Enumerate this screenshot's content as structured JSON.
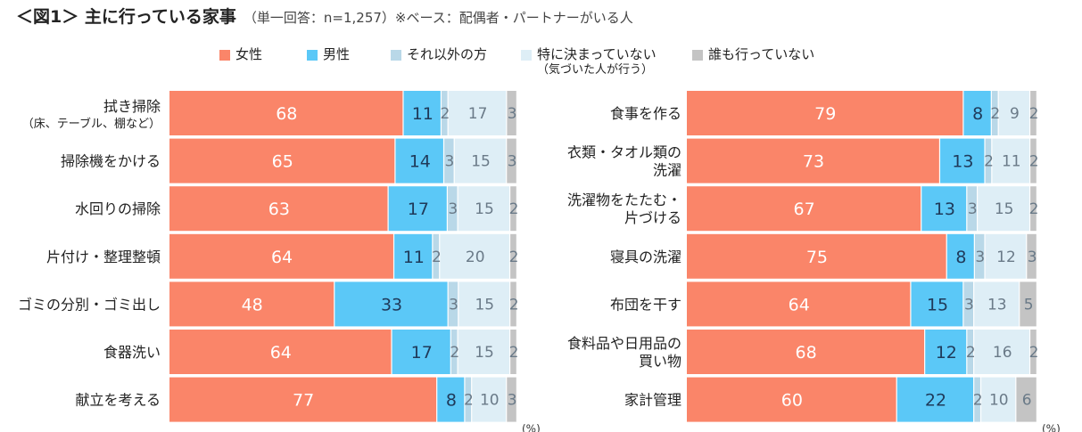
{
  "title": "＜図1＞ 主に行っている家事",
  "note": "（単一回答：n=1,257）※ベース：配偶者・パートナーがいる人",
  "legend": [
    {
      "name": "女性",
      "color": "#fa8569"
    },
    {
      "name": "男性",
      "color": "#5bc8f7"
    },
    {
      "name": "それ以外の方",
      "color": "#b9d8e8"
    },
    {
      "name": "特に決まっていない",
      "sub": "（気づいた人が行う）",
      "color": "#deeef6"
    },
    {
      "name": "誰も行っていない",
      "color": "#c4c4c4"
    }
  ],
  "chart_data": [
    {
      "type": "bar",
      "orientation": "horizontal",
      "stacked": "100%",
      "unit": "(%)",
      "categories": [
        "拭き掃除\n（床、テーブル、棚など）",
        "掃除機をかける",
        "水回りの掃除",
        "片付け・整理整頓",
        "ゴミの分別・ゴミ出し",
        "食器洗い",
        "献立を考える"
      ],
      "series": [
        {
          "name": "女性",
          "values": [
            68,
            65,
            63,
            64,
            48,
            64,
            77
          ]
        },
        {
          "name": "男性",
          "values": [
            11,
            14,
            17,
            11,
            33,
            17,
            8
          ]
        },
        {
          "name": "それ以外の方",
          "values": [
            2,
            3,
            3,
            2,
            3,
            2,
            2
          ]
        },
        {
          "name": "特に決まっていない（気づいた人が行う）",
          "values": [
            17,
            15,
            15,
            20,
            15,
            15,
            10
          ]
        },
        {
          "name": "誰も行っていない",
          "values": [
            3,
            3,
            2,
            2,
            2,
            2,
            3
          ]
        }
      ]
    },
    {
      "type": "bar",
      "orientation": "horizontal",
      "stacked": "100%",
      "unit": "(%)",
      "categories": [
        "食事を作る",
        "衣類・タオル類の\n洗濯",
        "洗濯物をたたむ・\n片づける",
        "寝具の洗濯",
        "布団を干す",
        "食料品や日用品の\n買い物",
        "家計管理"
      ],
      "series": [
        {
          "name": "女性",
          "values": [
            79,
            73,
            67,
            75,
            64,
            68,
            60
          ]
        },
        {
          "name": "男性",
          "values": [
            8,
            13,
            13,
            8,
            15,
            12,
            22
          ]
        },
        {
          "name": "それ以外の方",
          "values": [
            2,
            2,
            3,
            3,
            3,
            2,
            2
          ]
        },
        {
          "name": "特に決まっていない（気づいた人が行う）",
          "values": [
            9,
            11,
            15,
            12,
            13,
            16,
            10
          ]
        },
        {
          "name": "誰も行っていない",
          "values": [
            2,
            2,
            2,
            3,
            5,
            2,
            6
          ]
        }
      ]
    }
  ]
}
